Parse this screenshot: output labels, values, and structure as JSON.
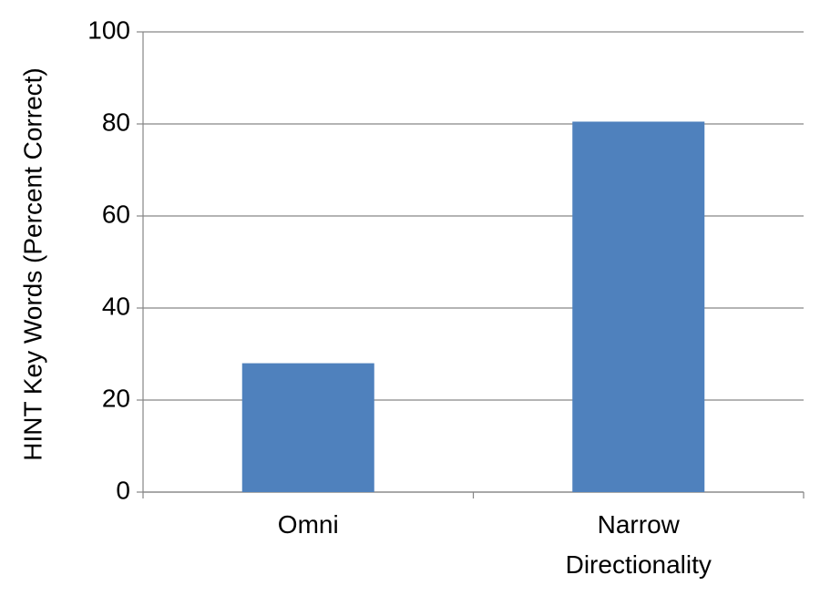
{
  "chart_data": {
    "type": "bar",
    "y_label": "HINT Key Words (Percent Correct)",
    "categories": [
      "Omni",
      "Narrow Directionality"
    ],
    "values": [
      28,
      80.5
    ],
    "color": "#4f81bd",
    "ylim": [
      0,
      100
    ],
    "yticks": [
      0,
      20,
      40,
      60,
      80,
      100
    ],
    "grid": true
  }
}
